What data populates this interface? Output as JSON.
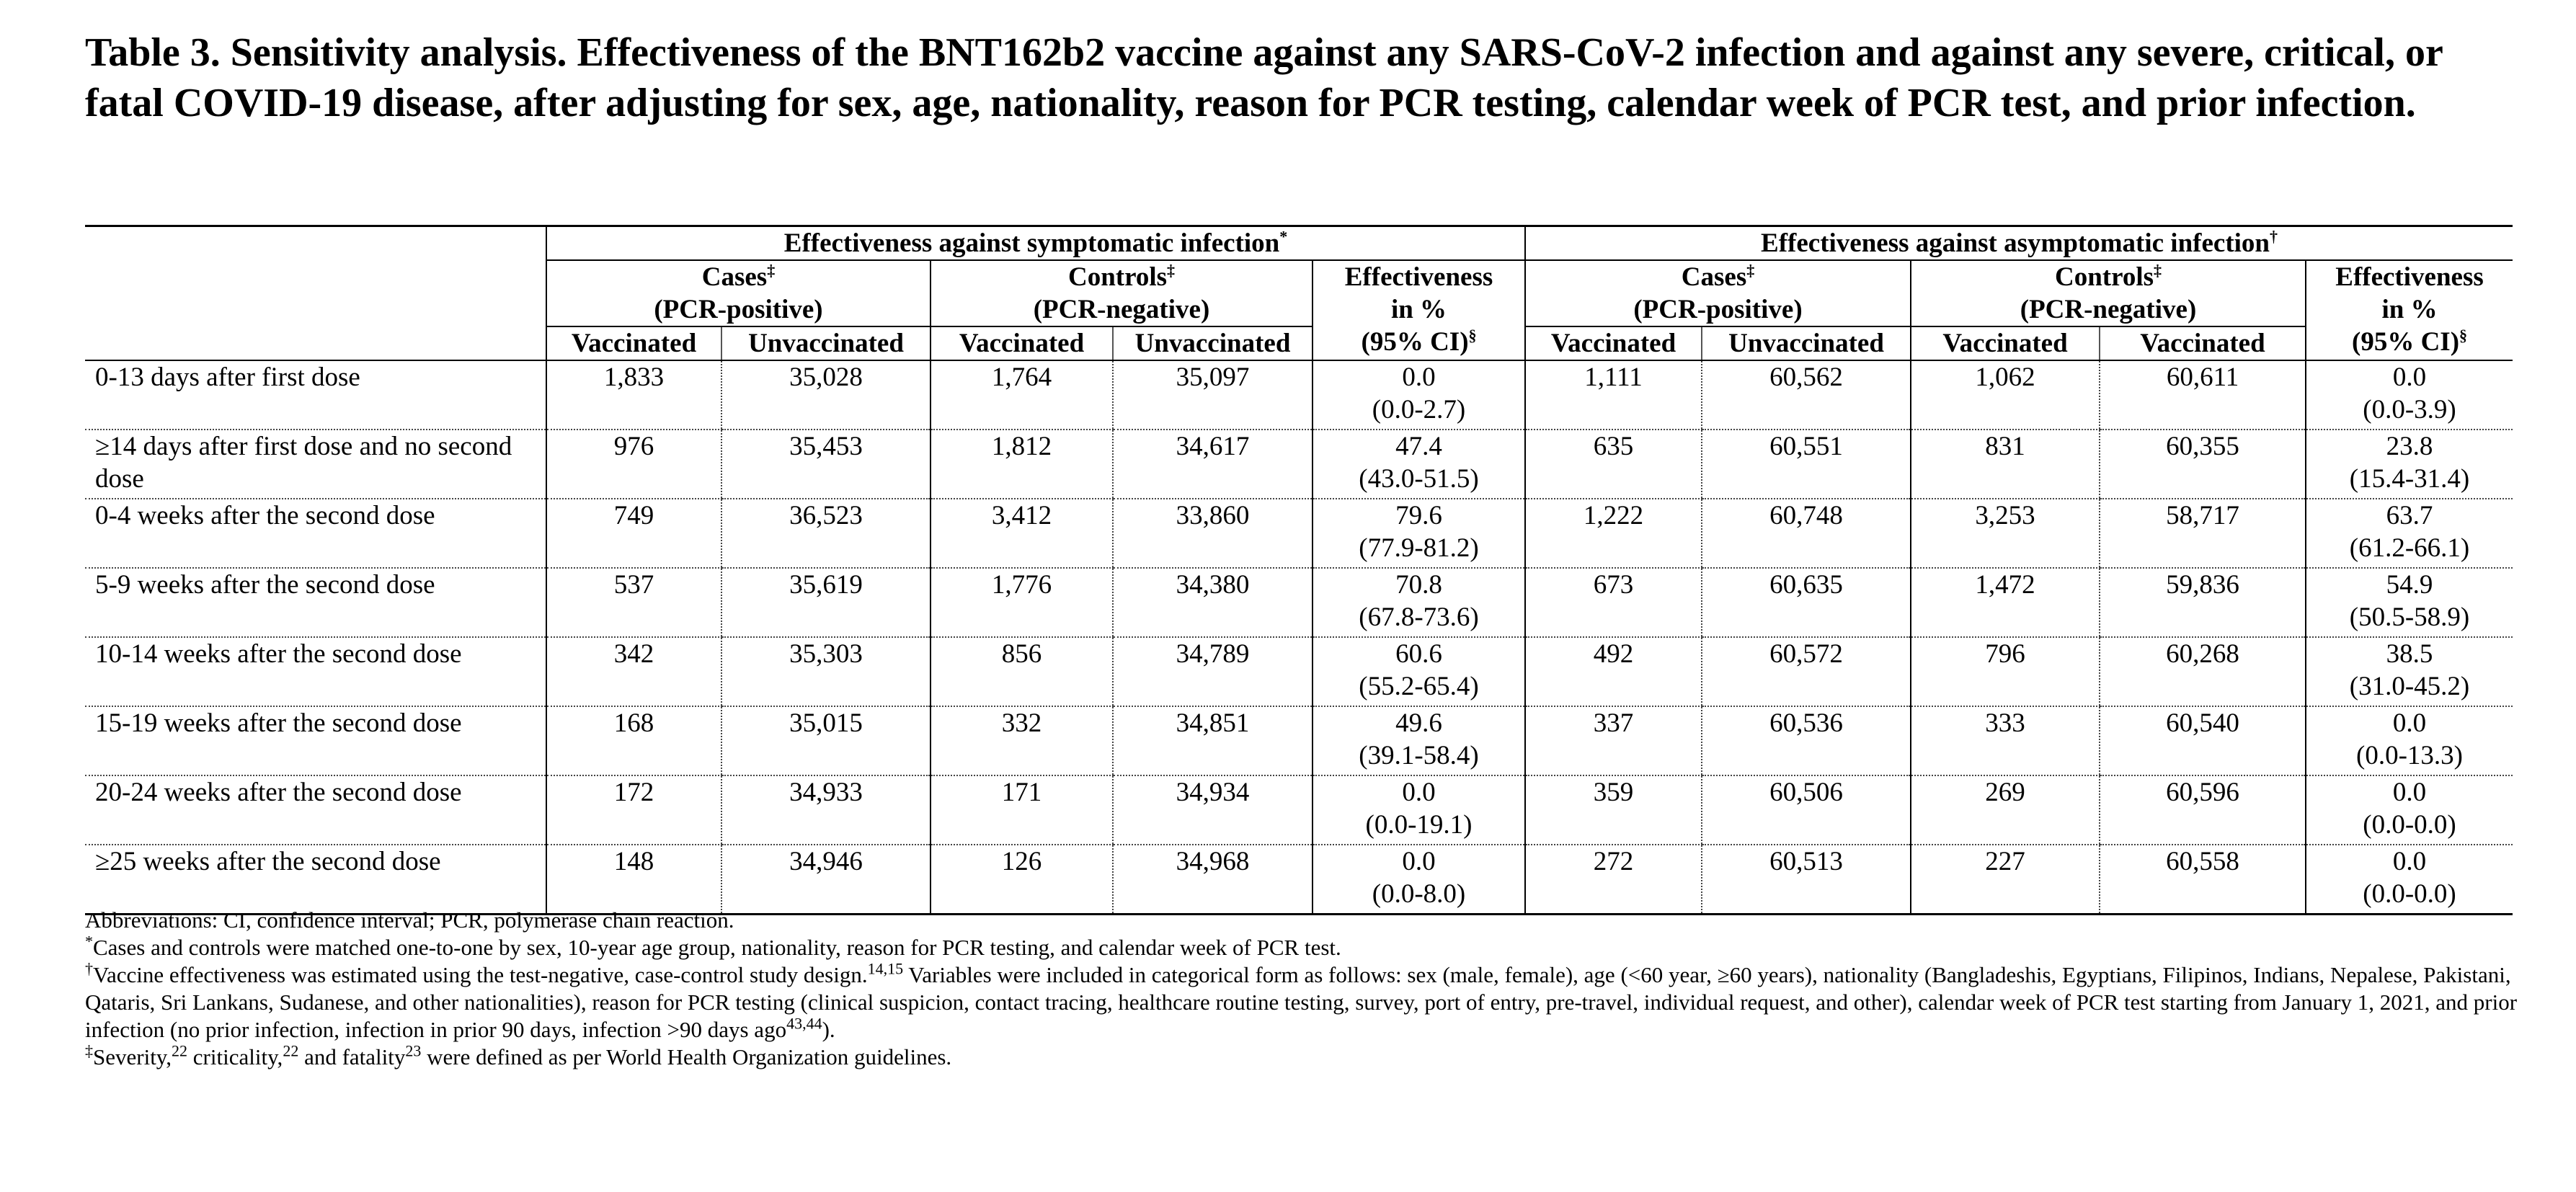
{
  "title": "Table 3. Sensitivity analysis. Effectiveness of the BNT162b2 vaccine against any SARS-CoV-2 infection and against any severe, critical, or fatal COVID-19 disease, after adjusting for sex, age, nationality, reason for PCR testing, calendar week of PCR test, and prior infection.",
  "headers": {
    "group_symptomatic": "Effectiveness against symptomatic infection",
    "group_symptomatic_mark": "*",
    "group_asymptomatic": "Effectiveness against asymptomatic infection",
    "group_asymptomatic_mark": "†",
    "cases": "Cases",
    "cases_sub": "(PCR-positive)",
    "controls": "Controls",
    "controls_sub": "(PCR-negative)",
    "double_dagger": "‡",
    "effectiveness_line1": "Effectiveness",
    "effectiveness_line2": "in %",
    "effectiveness_line3": "(95% CI)",
    "section_mark": "§",
    "sym_cols": [
      "Vaccinated",
      "Unvaccinated",
      "Vaccinated",
      "Unvaccinated"
    ],
    "asym_cols": [
      "Vaccinated",
      "Unvaccinated",
      "Vaccinated",
      "Vaccinated"
    ]
  },
  "rows": [
    {
      "label": "0-13 days after first dose",
      "s_cv": "1,833",
      "s_cu": "35,028",
      "s_kv": "1,764",
      "s_ku": "35,097",
      "s_eff": "0.0",
      "s_ci": "(0.0-2.7)",
      "a_cv": "1,111",
      "a_cu": "60,562",
      "a_kv": "1,062",
      "a_ku": "60,611",
      "a_eff": "0.0",
      "a_ci": "(0.0-3.9)"
    },
    {
      "label": "≥14 days after first dose and no second dose",
      "s_cv": "976",
      "s_cu": "35,453",
      "s_kv": "1,812",
      "s_ku": "34,617",
      "s_eff": "47.4",
      "s_ci": "(43.0-51.5)",
      "a_cv": "635",
      "a_cu": "60,551",
      "a_kv": "831",
      "a_ku": "60,355",
      "a_eff": "23.8",
      "a_ci": "(15.4-31.4)"
    },
    {
      "label": "0-4 weeks after the second dose",
      "s_cv": "749",
      "s_cu": "36,523",
      "s_kv": "3,412",
      "s_ku": "33,860",
      "s_eff": "79.6",
      "s_ci": "(77.9-81.2)",
      "a_cv": "1,222",
      "a_cu": "60,748",
      "a_kv": "3,253",
      "a_ku": "58,717",
      "a_eff": "63.7",
      "a_ci": "(61.2-66.1)"
    },
    {
      "label": "5-9 weeks after the second dose",
      "s_cv": "537",
      "s_cu": "35,619",
      "s_kv": "1,776",
      "s_ku": "34,380",
      "s_eff": "70.8",
      "s_ci": "(67.8-73.6)",
      "a_cv": "673",
      "a_cu": "60,635",
      "a_kv": "1,472",
      "a_ku": "59,836",
      "a_eff": "54.9",
      "a_ci": "(50.5-58.9)"
    },
    {
      "label": "10-14 weeks after the second dose",
      "s_cv": "342",
      "s_cu": "35,303",
      "s_kv": "856",
      "s_ku": "34,789",
      "s_eff": "60.6",
      "s_ci": "(55.2-65.4)",
      "a_cv": "492",
      "a_cu": "60,572",
      "a_kv": "796",
      "a_ku": "60,268",
      "a_eff": "38.5",
      "a_ci": "(31.0-45.2)"
    },
    {
      "label": "15-19 weeks after the second dose",
      "s_cv": "168",
      "s_cu": "35,015",
      "s_kv": "332",
      "s_ku": "34,851",
      "s_eff": "49.6",
      "s_ci": "(39.1-58.4)",
      "a_cv": "337",
      "a_cu": "60,536",
      "a_kv": "333",
      "a_ku": "60,540",
      "a_eff": "0.0",
      "a_ci": "(0.0-13.3)"
    },
    {
      "label": "20-24 weeks after the second dose",
      "s_cv": "172",
      "s_cu": "34,933",
      "s_kv": "171",
      "s_ku": "34,934",
      "s_eff": "0.0",
      "s_ci": "(0.0-19.1)",
      "a_cv": "359",
      "a_cu": "60,506",
      "a_kv": "269",
      "a_ku": "60,596",
      "a_eff": "0.0",
      "a_ci": "(0.0-0.0)"
    },
    {
      "label": "≥25 weeks after the second dose",
      "s_cv": "148",
      "s_cu": "34,946",
      "s_kv": "126",
      "s_ku": "34,968",
      "s_eff": "0.0",
      "s_ci": "(0.0-8.0)",
      "a_cv": "272",
      "a_cu": "60,513",
      "a_kv": "227",
      "a_ku": "60,558",
      "a_eff": "0.0",
      "a_ci": "(0.0-0.0)"
    }
  ],
  "footnotes": {
    "abbreviations": "Abbreviations: CI, confidence interval; PCR, polymerase chain reaction.",
    "fn1_mark": "*",
    "fn1": "Cases and controls were matched one-to-one by sex, 10-year age group, nationality, reason for PCR testing, and calendar week of PCR test.",
    "fn2_mark": "†",
    "fn2_a": "Vaccine effectiveness was estimated using the test-negative, case-control study design.",
    "fn2_ref1": "14,15",
    "fn2_b": " Variables were included in categorical form as follows: sex (male, female), age (<60 year, ≥60 years), nationality (Bangladeshis, Egyptians, Filipinos, Indians, Nepalese, Pakistani, Qataris, Sri Lankans, Sudanese, and other nationalities), reason for PCR testing (clinical suspicion, contact tracing, healthcare routine testing, survey, port of entry, pre-travel, individual request, and other), calendar week of PCR test starting from January 1, 2021, and prior infection (no prior infection, infection in prior 90 days, infection >90 days ago",
    "fn2_ref2": "43,44",
    "fn2_c": ").",
    "fn3_mark": "‡",
    "fn3_a": "Severity,",
    "fn3_ref1": "22",
    "fn3_b": " criticality,",
    "fn3_ref2": "22",
    "fn3_c": " and fatality",
    "fn3_ref3": "23",
    "fn3_d": " were defined as per World Health Organization guidelines."
  }
}
